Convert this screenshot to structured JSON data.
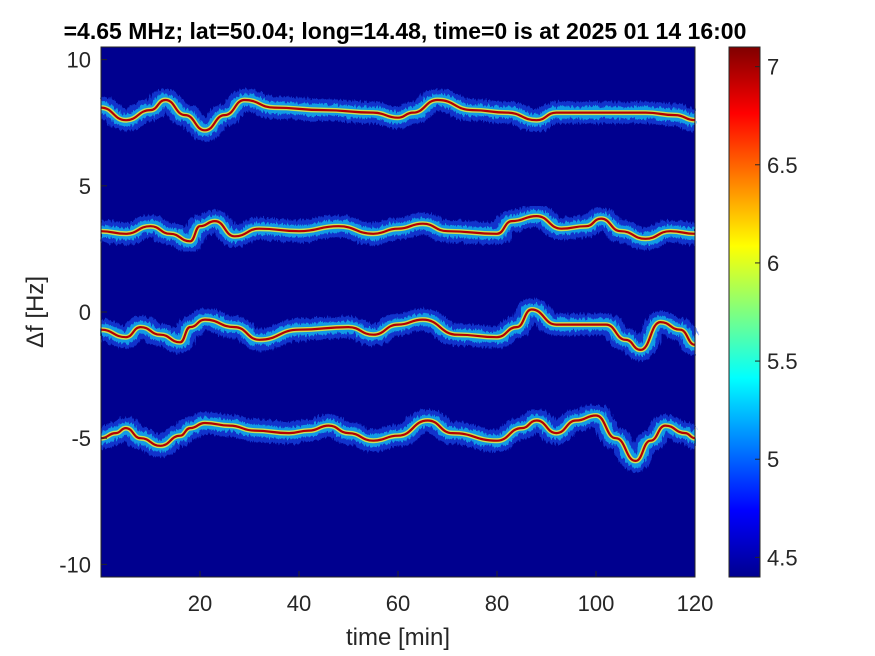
{
  "chart_data": {
    "type": "heatmap",
    "title": "=4.65 MHz;  lat=50.04; long=14.48, time=0 is at 2025 01 14 16:00",
    "xlabel": "time [min]",
    "ylabel": "Δf [Hz]",
    "xlim": [
      0,
      120
    ],
    "ylim": [
      -10.5,
      10.5
    ],
    "x_ticks": [
      20,
      40,
      60,
      80,
      100,
      120
    ],
    "x_tick_labels": [
      "20",
      "40",
      "60",
      "80",
      "100",
      "120"
    ],
    "y_ticks": [
      10,
      5,
      0,
      -5,
      -10
    ],
    "y_tick_labels": [
      "10",
      "5",
      "0",
      "-5",
      "-10"
    ],
    "colorbar": {
      "colormap": "jet",
      "limits": [
        4.4,
        7.1
      ],
      "ticks": [
        7,
        6.5,
        6,
        5.5,
        5,
        4.5
      ],
      "tick_labels": [
        "7",
        "6.5",
        "6",
        "5.5",
        "5",
        "4.5"
      ]
    },
    "background_color": "#00008f",
    "traces": [
      {
        "points": [
          [
            0,
            8.1
          ],
          [
            5,
            7.6
          ],
          [
            10,
            8.0
          ],
          [
            13,
            8.4
          ],
          [
            17,
            7.8
          ],
          [
            21,
            7.2
          ],
          [
            25,
            7.8
          ],
          [
            29,
            8.4
          ],
          [
            35,
            8.1
          ],
          [
            45,
            8.0
          ],
          [
            55,
            7.9
          ],
          [
            60,
            7.7
          ],
          [
            63,
            7.9
          ],
          [
            68,
            8.4
          ],
          [
            75,
            8.0
          ],
          [
            82,
            7.9
          ],
          [
            88,
            7.6
          ],
          [
            92,
            7.9
          ],
          [
            98,
            7.9
          ],
          [
            105,
            7.9
          ],
          [
            110,
            7.9
          ],
          [
            116,
            7.8
          ],
          [
            120,
            7.6
          ]
        ]
      },
      {
        "points": [
          [
            0,
            3.2
          ],
          [
            5,
            3.1
          ],
          [
            10,
            3.4
          ],
          [
            14,
            3.1
          ],
          [
            18,
            2.8
          ],
          [
            20,
            3.4
          ],
          [
            23,
            3.6
          ],
          [
            27,
            3.0
          ],
          [
            32,
            3.3
          ],
          [
            40,
            3.2
          ],
          [
            48,
            3.4
          ],
          [
            55,
            3.1
          ],
          [
            60,
            3.3
          ],
          [
            65,
            3.5
          ],
          [
            70,
            3.2
          ],
          [
            80,
            3.1
          ],
          [
            83,
            3.6
          ],
          [
            88,
            3.8
          ],
          [
            93,
            3.3
          ],
          [
            98,
            3.4
          ],
          [
            101,
            3.7
          ],
          [
            105,
            3.2
          ],
          [
            110,
            2.9
          ],
          [
            115,
            3.2
          ],
          [
            120,
            3.1
          ]
        ]
      },
      {
        "points": [
          [
            0,
            -0.7
          ],
          [
            5,
            -1.0
          ],
          [
            8,
            -0.6
          ],
          [
            12,
            -0.9
          ],
          [
            16,
            -1.2
          ],
          [
            18,
            -0.6
          ],
          [
            21,
            -0.3
          ],
          [
            27,
            -0.6
          ],
          [
            32,
            -1.1
          ],
          [
            40,
            -0.7
          ],
          [
            50,
            -0.6
          ],
          [
            55,
            -0.9
          ],
          [
            60,
            -0.5
          ],
          [
            65,
            -0.3
          ],
          [
            72,
            -0.9
          ],
          [
            80,
            -1.0
          ],
          [
            84,
            -0.6
          ],
          [
            87,
            0.1
          ],
          [
            92,
            -0.5
          ],
          [
            98,
            -0.5
          ],
          [
            102,
            -0.5
          ],
          [
            106,
            -1.1
          ],
          [
            109,
            -1.5
          ],
          [
            113,
            -0.4
          ],
          [
            117,
            -0.7
          ],
          [
            120,
            -1.3
          ]
        ]
      },
      {
        "points": [
          [
            0,
            -5.0
          ],
          [
            3,
            -4.8
          ],
          [
            5,
            -4.6
          ],
          [
            8,
            -5.0
          ],
          [
            12,
            -5.3
          ],
          [
            16,
            -4.9
          ],
          [
            18,
            -4.6
          ],
          [
            21,
            -4.4
          ],
          [
            26,
            -4.5
          ],
          [
            31,
            -4.7
          ],
          [
            38,
            -4.8
          ],
          [
            42,
            -4.7
          ],
          [
            46,
            -4.5
          ],
          [
            50,
            -4.8
          ],
          [
            55,
            -5.1
          ],
          [
            60,
            -4.9
          ],
          [
            66,
            -4.3
          ],
          [
            71,
            -4.8
          ],
          [
            80,
            -5.1
          ],
          [
            85,
            -4.6
          ],
          [
            88,
            -4.3
          ],
          [
            92,
            -4.8
          ],
          [
            96,
            -4.3
          ],
          [
            100,
            -4.1
          ],
          [
            104,
            -5.0
          ],
          [
            108,
            -5.9
          ],
          [
            111,
            -5.1
          ],
          [
            114,
            -4.5
          ],
          [
            118,
            -4.8
          ],
          [
            120,
            -5.0
          ]
        ]
      }
    ]
  }
}
